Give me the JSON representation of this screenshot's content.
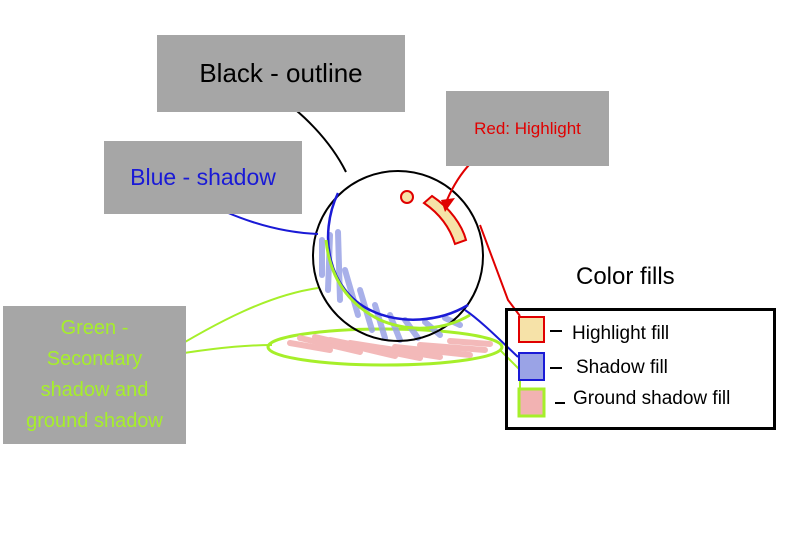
{
  "labels": {
    "black_outline": "Black - outline",
    "red_highlight": "Red: Highlight",
    "blue_shadow": "Blue - shadow",
    "green_secondary": "Green -\nSecondary\nshadow and\nground shadow"
  },
  "legend": {
    "title": "Color fills",
    "items": [
      {
        "label": "Highlight fill",
        "fill": "#f6e2a8",
        "border": "#e00000"
      },
      {
        "label": "Shadow fill",
        "fill": "#9aa3e6",
        "border": "#1a1ad6"
      },
      {
        "label": "Ground shadow fill",
        "fill": "#f2b2b2",
        "border": "#a6ef2a"
      }
    ]
  },
  "colors": {
    "outline": "#000000",
    "highlight": "#e00000",
    "shadow": "#1a1ad6",
    "secondary": "#a6ef2a",
    "label_box": "#a6a6a6"
  }
}
